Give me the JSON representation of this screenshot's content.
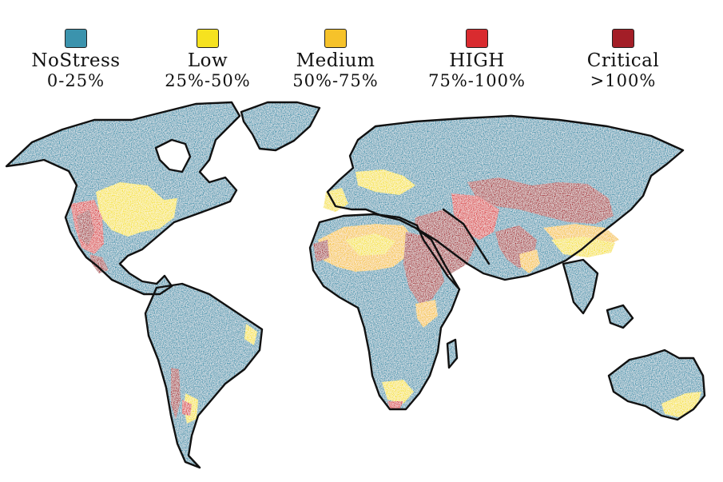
{
  "legend": [
    {
      "id": "no-stress",
      "label": "NoStress",
      "range": "0-25%",
      "color": "#3b93ad"
    },
    {
      "id": "low",
      "label": "Low",
      "range": "25%-50%",
      "color": "#f6e21f"
    },
    {
      "id": "medium",
      "label": "Medium",
      "range": "50%-75%",
      "color": "#f6c22a"
    },
    {
      "id": "high",
      "label": "HIGH",
      "range": "75%-100%",
      "color": "#d92b2f"
    },
    {
      "id": "critical",
      "label": "Critical",
      "range": ">100%",
      "color": "#a31e27"
    }
  ],
  "map": {
    "outline_color": "#111111",
    "ocean_color": "#ffffff"
  }
}
